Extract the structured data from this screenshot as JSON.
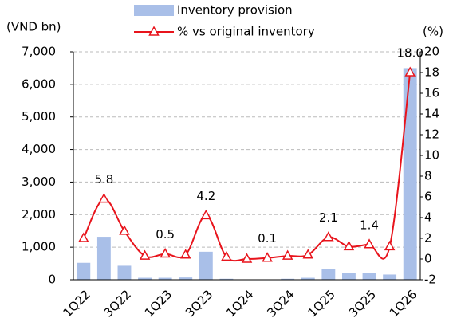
{
  "chart_data": {
    "type": "bar-line",
    "y_label": "(VND bn)",
    "y2_label": "(%)",
    "categories": [
      "1Q22",
      null,
      "3Q22",
      null,
      "1Q23",
      null,
      "3Q23",
      null,
      "1Q24",
      null,
      "3Q24",
      null,
      "1Q25",
      null,
      "3Q25",
      null,
      "1Q26"
    ],
    "series": [
      {
        "name": "Inventory provision",
        "type": "bar",
        "color": "#a9bfe8",
        "axis": "y",
        "values": [
          520,
          1320,
          430,
          60,
          60,
          70,
          860,
          30,
          0,
          0,
          30,
          60,
          330,
          200,
          220,
          160,
          6500
        ]
      },
      {
        "name": "% vs original inventory",
        "type": "line",
        "color": "#e8141c",
        "axis": "y2",
        "values": [
          2.0,
          5.8,
          2.7,
          0.3,
          0.5,
          0.4,
          4.2,
          0.2,
          0.0,
          0.1,
          0.3,
          0.4,
          2.1,
          1.2,
          1.4,
          1.2,
          18.0
        ],
        "value_labels": [
          null,
          "5.8",
          null,
          null,
          "0.5",
          null,
          "4.2",
          null,
          null,
          "0.1",
          null,
          null,
          "2.1",
          null,
          "1.4",
          null,
          "18.0"
        ]
      }
    ],
    "ylim": [
      0,
      7000
    ],
    "yticks": [
      0,
      {
        "value": 1000,
        "label": "1,000"
      },
      {
        "value": 2000,
        "label": "2,000"
      },
      {
        "value": 3000,
        "label": "3,000"
      },
      {
        "value": 4000,
        "label": "4,000"
      },
      {
        "value": 5000,
        "label": "5,000"
      },
      {
        "value": 6000,
        "label": "6,000"
      },
      {
        "value": 7000,
        "label": "7,000"
      }
    ],
    "y2lim": [
      -2,
      20
    ],
    "y2ticks": [
      -2,
      0,
      2,
      4,
      6,
      8,
      10,
      12,
      14,
      16,
      18,
      20
    ],
    "grid": true
  }
}
